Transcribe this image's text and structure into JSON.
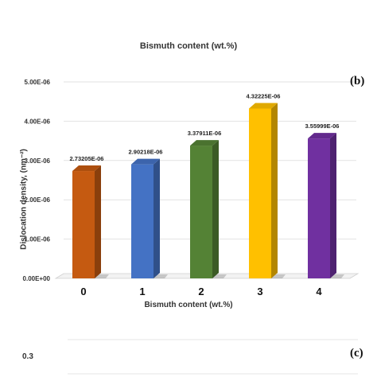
{
  "header": {
    "cut_text": "",
    "title": "Bismuth content  (wt.%)"
  },
  "chart_data": {
    "type": "bar",
    "panel": "(b)",
    "categories": [
      "0",
      "1",
      "2",
      "3",
      "4"
    ],
    "values": [
      2.73205e-06,
      2.90218e-06,
      3.37911e-06,
      4.32225e-06,
      3.55999e-06
    ],
    "value_labels": [
      "2.73205E-06",
      "2.90218E-06",
      "3.37911E-06",
      "4.32225E-06",
      "3.55999E-06"
    ],
    "colors": [
      "#c55a11",
      "#4472c4",
      "#548235",
      "#ffc000",
      "#7030a0"
    ],
    "xlabel": "Bismuth content  (wt.%)",
    "ylabel": "Dislocation density, (nm⁻²)",
    "ylim": [
      0,
      5e-06
    ],
    "yticks": [
      0,
      1e-06,
      2e-06,
      3e-06,
      4e-06,
      5e-06
    ],
    "ytick_labels": [
      "0.00E+00",
      "1.00E-06",
      "2.00E-06",
      "3.00E-06",
      "4.00E-06",
      "5.00E-06"
    ],
    "grid": true
  },
  "next_panel": {
    "label": "(c)",
    "first_tick": "0.3"
  }
}
